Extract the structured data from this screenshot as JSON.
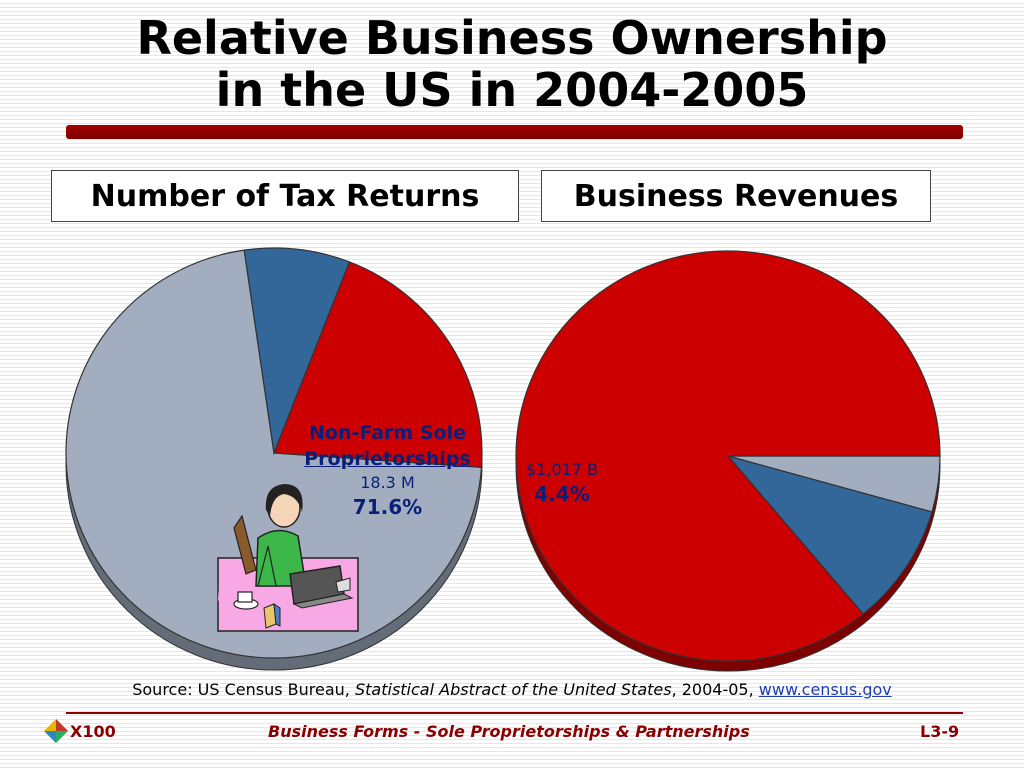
{
  "title": {
    "line1": "Relative Business Ownership",
    "line2": "in the US in 2004-2005"
  },
  "colors": {
    "title_rule": "#8b0000",
    "sole_prop": "#a2aec0",
    "partnerships": "#336699",
    "corporations": "#cc0000",
    "annotation_text": "#0a1f7a",
    "footer_text": "#8a0000"
  },
  "chart_data": [
    {
      "type": "pie",
      "title": "Number of Tax Returns",
      "series": [
        {
          "values": [
            71.6,
            8.2,
            20.2
          ],
          "colors": [
            "#a2aec0",
            "#336699",
            "#cc0000"
          ]
        }
      ],
      "annotation": {
        "label_line1": "Non-Farm Sole",
        "label_line2": "Proprietorships",
        "value": "18.3 M",
        "percent": "71.6%"
      }
    },
    {
      "type": "pie",
      "title": "Business Revenues",
      "series": [
        {
          "values": [
            4.4,
            9.6,
            86.0
          ],
          "colors": [
            "#a2aec0",
            "#336699",
            "#cc0000"
          ]
        }
      ],
      "annotation": {
        "value": "$1,017 B",
        "percent": "4.4%"
      }
    }
  ],
  "source": {
    "prefix": "Source: US Census Bureau, ",
    "publication": "Statistical Abstract of the United States",
    "years": ", 2004-05, ",
    "link": "www.census.gov"
  },
  "footer": {
    "left": "X100",
    "center": "Business Forms - Sole Proprietorships & Partnerships",
    "right": "L3-9"
  }
}
